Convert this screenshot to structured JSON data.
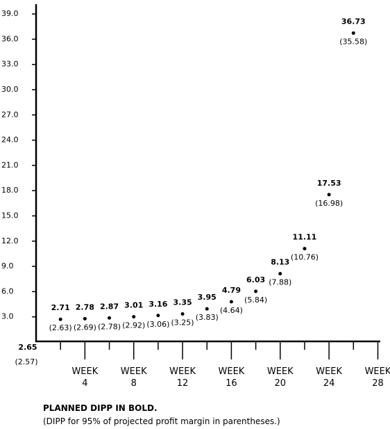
{
  "chart_data": {
    "type": "scatter",
    "x": [
      0,
      2,
      4,
      6,
      8,
      10,
      12,
      14,
      16,
      18,
      20,
      22,
      24,
      26
    ],
    "series": [
      {
        "color": "#000000",
        "values": [
          2.65,
          2.71,
          2.78,
          2.87,
          3.01,
          3.16,
          3.35,
          3.95,
          4.79,
          6.03,
          8.13,
          11.11,
          17.53,
          36.73
        ]
      },
      {
        "color": "#000000",
        "values": [
          2.57,
          2.63,
          2.69,
          2.78,
          2.92,
          3.06,
          3.25,
          3.83,
          4.64,
          5.84,
          7.88,
          10.76,
          16.98,
          35.58
        ],
        "value_labels": [
          "(2.57)",
          "(2.63)",
          "(2.69)",
          "(2.78)",
          "(2.92)",
          "(3.06)",
          "(3.25)",
          "(3.83)",
          "(4.64)",
          "(5.84)",
          "(7.88)",
          "(10.76)",
          "(16.98)",
          "(35.58)"
        ]
      }
    ],
    "xlim": [
      0,
      28.2
    ],
    "xticks": [
      {
        "value": 4,
        "label": "WEEK\n4"
      },
      {
        "value": 8,
        "label": "WEEK\n8"
      },
      {
        "value": 12,
        "label": "WEEK\n12"
      },
      {
        "value": 16,
        "label": "WEEK\n16"
      },
      {
        "value": 20,
        "label": "WEEK\n20"
      },
      {
        "value": 24,
        "label": "WEEK\n24"
      },
      {
        "value": 28,
        "label": "WEEK\n28"
      }
    ],
    "xminorticks": [
      2,
      6,
      10,
      14,
      18,
      22,
      26
    ],
    "ylim": [
      0,
      40
    ],
    "yticks": [
      {
        "value": 3,
        "label": "3.0"
      },
      {
        "value": 6,
        "label": "6.0"
      },
      {
        "value": 9,
        "label": "9.0"
      },
      {
        "value": 12,
        "label": "12.0"
      },
      {
        "value": 15,
        "label": "15.0"
      },
      {
        "value": 18,
        "label": "18.0"
      },
      {
        "value": 21,
        "label": "21.0"
      },
      {
        "value": 24,
        "label": "24.0"
      },
      {
        "value": 27,
        "label": "27.0"
      },
      {
        "value": 30,
        "label": "30.0"
      },
      {
        "value": 33,
        "label": "33.0"
      },
      {
        "value": 36,
        "label": "36.0"
      },
      {
        "value": 39,
        "label": "39.0"
      }
    ],
    "notes": [
      "PLANNED DIPP IN BOLD.",
      "(DIPP for 95% of projected profit margin in parentheses.)"
    ]
  }
}
